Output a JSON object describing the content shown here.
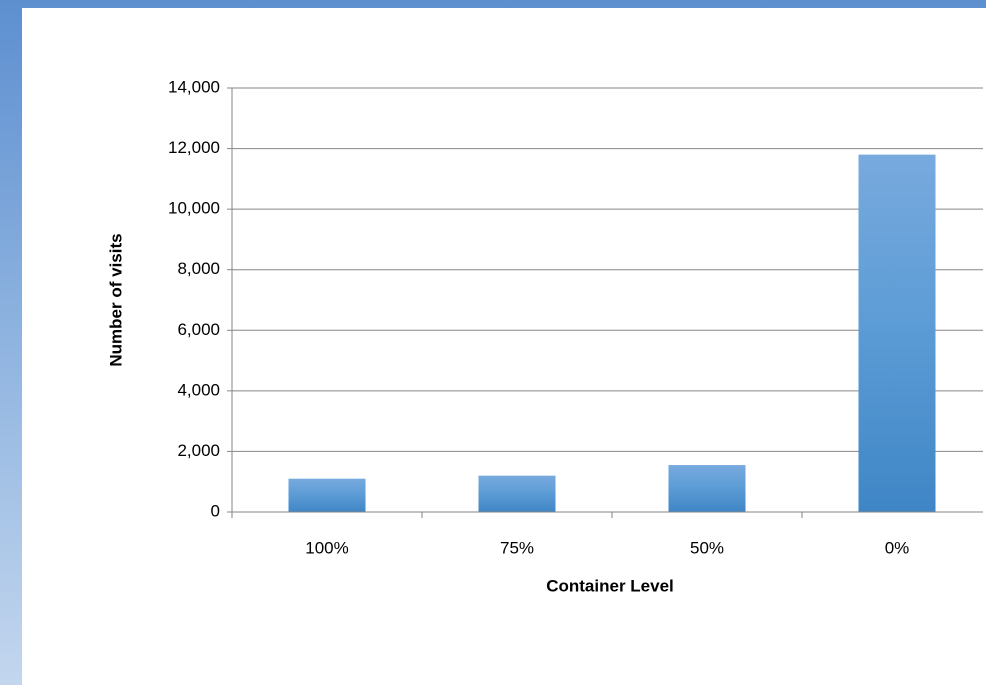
{
  "chart_data": {
    "type": "bar",
    "x_label": "Container Level",
    "y_label": "Number of visits",
    "categories": [
      "100%",
      "75%",
      "50%",
      "0%"
    ],
    "values": [
      1100,
      1200,
      1550,
      11800
    ],
    "color": "#5b9bd5",
    "ylim": [
      0,
      14000
    ],
    "yticks": [
      0,
      {
        "value": 2000,
        "label": "2,000"
      },
      {
        "value": 4000,
        "label": "4,000"
      },
      {
        "value": 6000,
        "label": "6,000"
      },
      {
        "value": 8000,
        "label": "8,000"
      },
      {
        "value": 10000,
        "label": "10,000"
      },
      {
        "value": 12000,
        "label": "12,000"
      },
      {
        "value": 14000,
        "label": "14,000"
      }
    ],
    "grid": true
  }
}
